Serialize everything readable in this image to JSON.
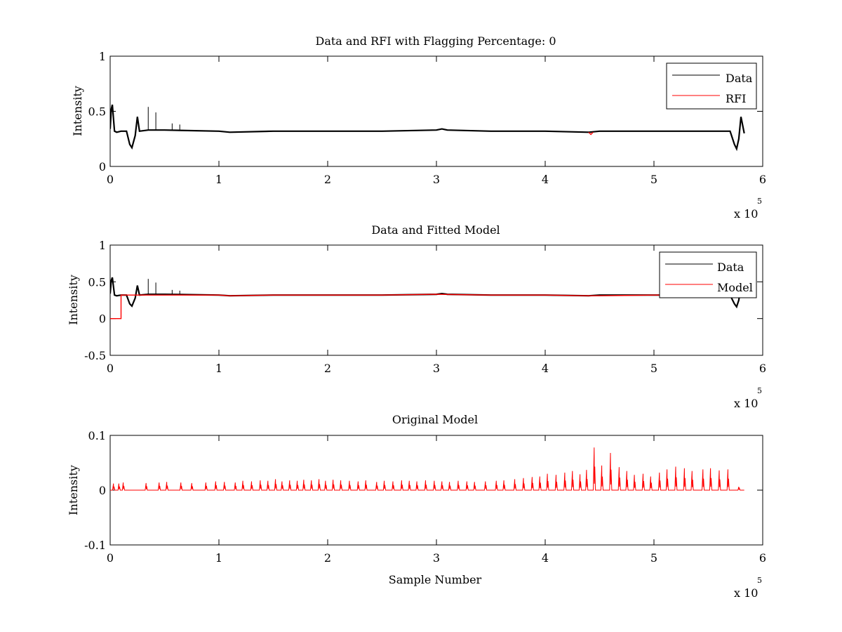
{
  "chart_data": [
    {
      "type": "line",
      "title": "Data and RFI with Flagging Percentage: 0",
      "ylabel": "Intensity",
      "xlabel": "",
      "xlim": [
        0,
        6
      ],
      "ylim": [
        0,
        1
      ],
      "xticks": [
        0,
        1,
        2,
        3,
        4,
        5,
        6
      ],
      "yticks": [
        0,
        0.5,
        1
      ],
      "xtick_labels": [
        "0",
        "1",
        "2",
        "3",
        "4",
        "5",
        "6"
      ],
      "ytick_labels": [
        "0",
        "0.5",
        "1"
      ],
      "x_multiplier": {
        "base": "x 10",
        "exponent": "5"
      },
      "legend": {
        "position": "top-right",
        "entries": [
          "Data",
          "RFI"
        ]
      },
      "series": [
        {
          "name": "Data",
          "color": "#000000",
          "x": [
            0,
            0.01,
            0.02,
            0.04,
            0.06,
            0.1,
            0.15,
            0.18,
            0.2,
            0.23,
            0.25,
            0.27,
            0.35,
            0.5,
            1.0,
            1.1,
            1.5,
            2.0,
            2.5,
            3.0,
            3.05,
            3.1,
            3.5,
            4.0,
            4.4,
            4.5,
            5.0,
            5.5,
            5.7,
            5.74,
            5.76,
            5.78,
            5.8,
            5.83
          ],
          "values": [
            0.34,
            0.52,
            0.56,
            0.32,
            0.31,
            0.32,
            0.32,
            0.2,
            0.17,
            0.28,
            0.45,
            0.32,
            0.33,
            0.33,
            0.32,
            0.31,
            0.32,
            0.32,
            0.32,
            0.33,
            0.34,
            0.33,
            0.32,
            0.32,
            0.31,
            0.32,
            0.32,
            0.32,
            0.32,
            0.2,
            0.16,
            0.25,
            0.45,
            0.3
          ]
        },
        {
          "name": "RFI",
          "color": "#ff0000",
          "x": [
            4.4,
            4.42,
            4.44
          ],
          "values": [
            0.31,
            0.29,
            0.31
          ]
        }
      ],
      "spikes": {
        "x": [
          0.35,
          0.42,
          0.57,
          0.64
        ],
        "values": [
          0.54,
          0.49,
          0.39,
          0.38
        ]
      }
    },
    {
      "type": "line",
      "title": "Data and Fitted Model",
      "ylabel": "Intensity",
      "xlabel": "",
      "xlim": [
        0,
        6
      ],
      "ylim": [
        -0.5,
        1
      ],
      "xticks": [
        0,
        1,
        2,
        3,
        4,
        5,
        6
      ],
      "yticks": [
        -0.5,
        0,
        0.5,
        1
      ],
      "xtick_labels": [
        "0",
        "1",
        "2",
        "3",
        "4",
        "5",
        "6"
      ],
      "ytick_labels": [
        "-0.5",
        "0",
        "0.5",
        "1"
      ],
      "x_multiplier": {
        "base": "x 10",
        "exponent": "5"
      },
      "legend": {
        "position": "top-right",
        "entries": [
          "Data",
          "Model"
        ]
      },
      "series": [
        {
          "name": "Data",
          "color": "#000000",
          "x": [
            0,
            0.01,
            0.02,
            0.04,
            0.06,
            0.1,
            0.15,
            0.18,
            0.2,
            0.23,
            0.25,
            0.27,
            0.35,
            0.5,
            1.0,
            1.1,
            1.5,
            2.0,
            2.5,
            3.0,
            3.05,
            3.1,
            3.5,
            4.0,
            4.4,
            4.5,
            5.0,
            5.5,
            5.7,
            5.74,
            5.76,
            5.78,
            5.8,
            5.83
          ],
          "values": [
            0.34,
            0.52,
            0.56,
            0.32,
            0.31,
            0.32,
            0.32,
            0.2,
            0.17,
            0.28,
            0.45,
            0.32,
            0.33,
            0.33,
            0.32,
            0.31,
            0.32,
            0.32,
            0.32,
            0.33,
            0.34,
            0.33,
            0.32,
            0.32,
            0.31,
            0.32,
            0.32,
            0.32,
            0.32,
            0.2,
            0.16,
            0.25,
            0.45,
            0.3
          ]
        },
        {
          "name": "Model",
          "color": "#ff0000",
          "x": [
            0,
            0.1,
            0.1,
            0.2,
            0.5,
            1.0,
            1.1,
            1.5,
            2.0,
            2.5,
            3.0,
            3.5,
            4.0,
            4.4,
            4.5,
            5.0,
            5.5,
            5.7
          ],
          "values": [
            0.0,
            0.0,
            0.32,
            0.32,
            0.32,
            0.32,
            0.31,
            0.32,
            0.32,
            0.32,
            0.33,
            0.32,
            0.32,
            0.31,
            0.31,
            0.32,
            0.32,
            0.32
          ]
        }
      ],
      "spikes": {
        "x": [
          0.35,
          0.42,
          0.57,
          0.64
        ],
        "values": [
          0.54,
          0.49,
          0.39,
          0.38
        ]
      }
    },
    {
      "type": "line",
      "title": "Original Model",
      "ylabel": "Intensity",
      "xlabel": "Sample Number",
      "xlim": [
        0,
        6
      ],
      "ylim": [
        -0.1,
        0.1
      ],
      "xticks": [
        0,
        1,
        2,
        3,
        4,
        5,
        6
      ],
      "yticks": [
        -0.1,
        0,
        0.1
      ],
      "xtick_labels": [
        "0",
        "1",
        "2",
        "3",
        "4",
        "5",
        "6"
      ],
      "ytick_labels": [
        "-0.1",
        "0",
        "0.1"
      ],
      "x_multiplier": {
        "base": "x 10",
        "exponent": "5"
      },
      "series": [
        {
          "color": "#ff0000",
          "baseline": 0,
          "x_end": 5.83,
          "peaks_x": [
            0.03,
            0.08,
            0.12,
            0.33,
            0.45,
            0.52,
            0.65,
            0.75,
            0.88,
            0.97,
            1.05,
            1.15,
            1.22,
            1.3,
            1.38,
            1.45,
            1.52,
            1.58,
            1.65,
            1.72,
            1.78,
            1.85,
            1.92,
            1.98,
            2.05,
            2.12,
            2.2,
            2.28,
            2.35,
            2.45,
            2.52,
            2.6,
            2.68,
            2.75,
            2.82,
            2.9,
            2.98,
            3.05,
            3.12,
            3.2,
            3.28,
            3.35,
            3.45,
            3.55,
            3.62,
            3.72,
            3.8,
            3.88,
            3.95,
            4.02,
            4.1,
            4.18,
            4.25,
            4.32,
            4.38,
            4.45,
            4.52,
            4.6,
            4.68,
            4.75,
            4.82,
            4.9,
            4.97,
            5.05,
            5.12,
            5.2,
            5.28,
            5.35,
            5.45,
            5.52,
            5.6,
            5.68,
            5.78
          ],
          "peaks_y": [
            0.012,
            0.012,
            0.014,
            0.013,
            0.014,
            0.015,
            0.014,
            0.013,
            0.014,
            0.016,
            0.015,
            0.014,
            0.017,
            0.016,
            0.018,
            0.017,
            0.02,
            0.016,
            0.018,
            0.017,
            0.019,
            0.018,
            0.02,
            0.017,
            0.019,
            0.018,
            0.017,
            0.016,
            0.018,
            0.015,
            0.017,
            0.016,
            0.018,
            0.017,
            0.016,
            0.018,
            0.017,
            0.016,
            0.015,
            0.017,
            0.016,
            0.015,
            0.016,
            0.017,
            0.018,
            0.02,
            0.022,
            0.024,
            0.025,
            0.03,
            0.028,
            0.032,
            0.035,
            0.029,
            0.037,
            0.078,
            0.045,
            0.068,
            0.042,
            0.035,
            0.028,
            0.03,
            0.025,
            0.032,
            0.038,
            0.043,
            0.04,
            0.035,
            0.038,
            0.04,
            0.036,
            0.038,
            0.006
          ]
        }
      ]
    }
  ]
}
